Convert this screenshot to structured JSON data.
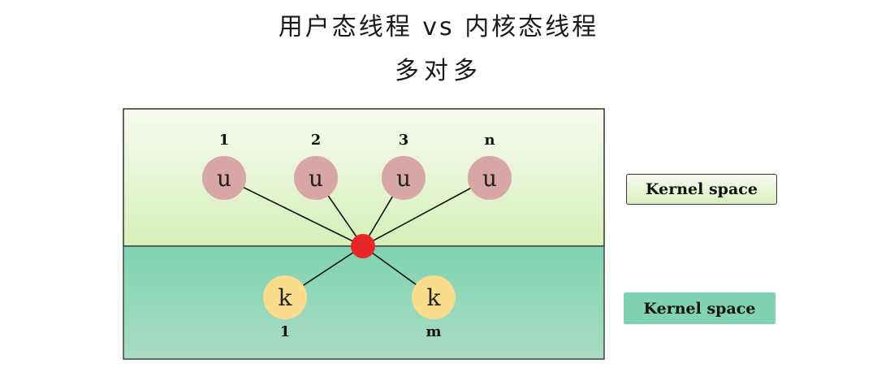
{
  "title": "用户态线程 vs 内核态线程",
  "subtitle": "多对多",
  "user_threads": [
    {
      "label": "1",
      "glyph": "u"
    },
    {
      "label": "2",
      "glyph": "u"
    },
    {
      "label": "3",
      "glyph": "u"
    },
    {
      "label": "n",
      "glyph": "u"
    }
  ],
  "kernel_threads": [
    {
      "label": "1",
      "glyph": "k"
    },
    {
      "label": "m",
      "glyph": "k"
    }
  ],
  "legend": {
    "top_label": "Kernel space",
    "bottom_label": "Kernel space"
  },
  "colors": {
    "user_node": "#d9a6a6",
    "kernel_node": "#f9dc8c",
    "hub": "#e8262a",
    "user_region_top": "#f7fbef",
    "user_region_bottom": "#d6efb9",
    "kernel_region_top": "#7fd3b2",
    "kernel_region_bottom": "#a9dcc4"
  }
}
